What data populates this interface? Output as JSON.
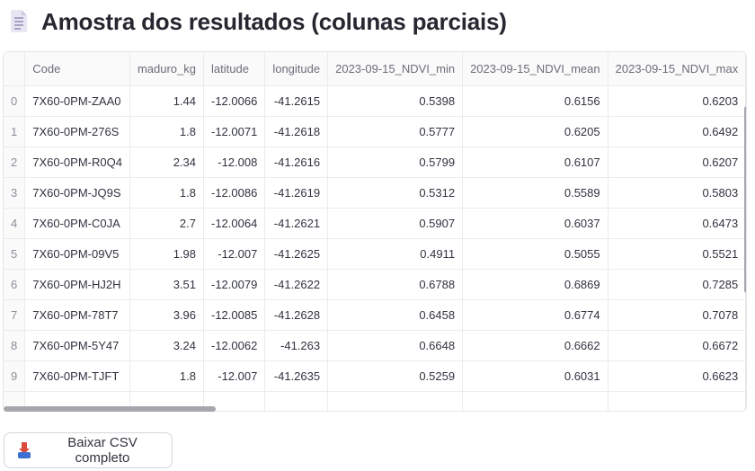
{
  "header": {
    "title": "Amostra dos resultados (colunas parciais)",
    "icon": "document-icon"
  },
  "table": {
    "columns": [
      "",
      "Code",
      "maduro_kg",
      "latitude",
      "longitude",
      "2023-09-15_NDVI_min",
      "2023-09-15_NDVI_mean",
      "2023-09-15_NDVI_max"
    ],
    "rows": [
      [
        "0",
        "7X60-0PM-ZAA0",
        "1.44",
        "-12.0066",
        "-41.2615",
        "0.5398",
        "0.6156",
        "0.6203"
      ],
      [
        "1",
        "7X60-0PM-276S",
        "1.8",
        "-12.0071",
        "-41.2618",
        "0.5777",
        "0.6205",
        "0.6492"
      ],
      [
        "2",
        "7X60-0PM-R0Q4",
        "2.34",
        "-12.008",
        "-41.2616",
        "0.5799",
        "0.6107",
        "0.6207"
      ],
      [
        "3",
        "7X60-0PM-JQ9S",
        "1.8",
        "-12.0086",
        "-41.2619",
        "0.5312",
        "0.5589",
        "0.5803"
      ],
      [
        "4",
        "7X60-0PM-C0JA",
        "2.7",
        "-12.0064",
        "-41.2621",
        "0.5907",
        "0.6037",
        "0.6473"
      ],
      [
        "5",
        "7X60-0PM-09V5",
        "1.98",
        "-12.007",
        "-41.2625",
        "0.4911",
        "0.5055",
        "0.5521"
      ],
      [
        "6",
        "7X60-0PM-HJ2H",
        "3.51",
        "-12.0079",
        "-41.2622",
        "0.6788",
        "0.6869",
        "0.7285"
      ],
      [
        "7",
        "7X60-0PM-78T7",
        "3.96",
        "-12.0085",
        "-41.2628",
        "0.6458",
        "0.6774",
        "0.7078"
      ],
      [
        "8",
        "7X60-0PM-5Y47",
        "3.24",
        "-12.0062",
        "-41.263",
        "0.6648",
        "0.6662",
        "0.6672"
      ],
      [
        "9",
        "7X60-0PM-TJFT",
        "1.8",
        "-12.007",
        "-41.2635",
        "0.5259",
        "0.6031",
        "0.6623"
      ]
    ]
  },
  "download": {
    "label": "Baixar CSV completo",
    "icon": "download-tray-icon"
  }
}
